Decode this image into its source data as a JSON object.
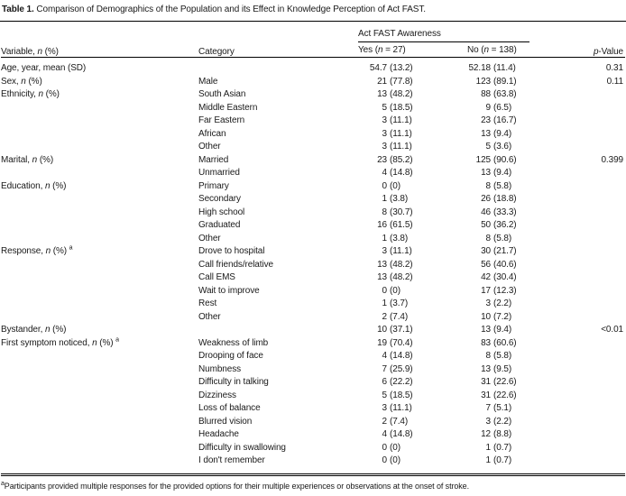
{
  "colors": {
    "text": "#1a1a1a",
    "background": "#ffffff",
    "rule": "#000000"
  },
  "title_segments": [
    {
      "t": "Table 1.",
      "b": true
    },
    {
      "t": " Comparison of Demographics of the Population and its Effect in Knowledge Perception of Act FAST."
    }
  ],
  "table": {
    "columns": {
      "variable_segments": [
        {
          "t": "Variable, "
        },
        {
          "t": "n",
          "i": true
        },
        {
          "t": " (%)"
        }
      ],
      "category": "Category",
      "spanner": "Act FAST Awareness",
      "yes_segments": [
        {
          "t": "Yes ("
        },
        {
          "t": "n",
          "i": true
        },
        {
          "t": " = 27)"
        }
      ],
      "no_segments": [
        {
          "t": "No ("
        },
        {
          "t": "n",
          "i": true
        },
        {
          "t": " = 138)"
        }
      ],
      "pvalue_segments": [
        {
          "t": "p",
          "i": true
        },
        {
          "t": "-Value"
        }
      ]
    },
    "rows": [
      {
        "variable": [
          {
            "t": "Age, year, mean (SD)"
          }
        ],
        "category": "",
        "yes": [
          "54.7",
          "(13.2)"
        ],
        "no": [
          "52.18",
          "(11.4)"
        ],
        "p": "0.31"
      },
      {
        "variable": [
          {
            "t": "Sex, "
          },
          {
            "t": "n",
            "i": true
          },
          {
            "t": " (%)"
          }
        ],
        "category": "Male",
        "yes": [
          "21",
          "(77.8)"
        ],
        "no": [
          "123",
          "(89.1)"
        ],
        "p": "0.11"
      },
      {
        "variable": [
          {
            "t": "Ethnicity, "
          },
          {
            "t": "n",
            "i": true
          },
          {
            "t": " (%)"
          }
        ],
        "category": "South Asian",
        "yes": [
          "13",
          "(48.2)"
        ],
        "no": [
          "88",
          "(63.8)"
        ],
        "p": ""
      },
      {
        "variable": [],
        "category": "Middle Eastern",
        "yes": [
          "5",
          "(18.5)"
        ],
        "no": [
          "9",
          "(6.5)"
        ],
        "p": ""
      },
      {
        "variable": [],
        "category": "Far Eastern",
        "yes": [
          "3",
          "(11.1)"
        ],
        "no": [
          "23",
          "(16.7)"
        ],
        "p": ""
      },
      {
        "variable": [],
        "category": "African",
        "yes": [
          "3",
          "(11.1)"
        ],
        "no": [
          "13",
          "(9.4)"
        ],
        "p": ""
      },
      {
        "variable": [],
        "category": "Other",
        "yes": [
          "3",
          "(11.1)"
        ],
        "no": [
          "5",
          "(3.6)"
        ],
        "p": ""
      },
      {
        "variable": [
          {
            "t": "Marital, "
          },
          {
            "t": "n",
            "i": true
          },
          {
            "t": " (%)"
          }
        ],
        "category": "Married",
        "yes": [
          "23",
          "(85.2)"
        ],
        "no": [
          "125",
          "(90.6)"
        ],
        "p": "0.399"
      },
      {
        "variable": [],
        "category": "Unmarried",
        "yes": [
          "4",
          "(14.8)"
        ],
        "no": [
          "13",
          "(9.4)"
        ],
        "p": ""
      },
      {
        "variable": [
          {
            "t": "Education, "
          },
          {
            "t": "n",
            "i": true
          },
          {
            "t": " (%)"
          }
        ],
        "category": "Primary",
        "yes": [
          "0",
          "(0)"
        ],
        "no": [
          "8",
          "(5.8)"
        ],
        "p": ""
      },
      {
        "variable": [],
        "category": "Secondary",
        "yes": [
          "1",
          "(3.8)"
        ],
        "no": [
          "26",
          "(18.8)"
        ],
        "p": ""
      },
      {
        "variable": [],
        "category": "High school",
        "yes": [
          "8",
          "(30.7)"
        ],
        "no": [
          "46",
          "(33.3)"
        ],
        "p": ""
      },
      {
        "variable": [],
        "category": "Graduated",
        "yes": [
          "16",
          "(61.5)"
        ],
        "no": [
          "50",
          "(36.2)"
        ],
        "p": ""
      },
      {
        "variable": [],
        "category": "Other",
        "yes": [
          "1",
          "(3.8)"
        ],
        "no": [
          "8",
          "(5.8)"
        ],
        "p": ""
      },
      {
        "variable": [
          {
            "t": "Response, "
          },
          {
            "t": "n",
            "i": true
          },
          {
            "t": " (%) "
          },
          {
            "t": "a",
            "sup": true
          }
        ],
        "category": "Drove to hospital",
        "yes": [
          "3",
          "(11.1)"
        ],
        "no": [
          "30",
          "(21.7)"
        ],
        "p": ""
      },
      {
        "variable": [],
        "category": "Call friends/relative",
        "yes": [
          "13",
          "(48.2)"
        ],
        "no": [
          "56",
          "(40.6)"
        ],
        "p": ""
      },
      {
        "variable": [],
        "category": "Call EMS",
        "yes": [
          "13",
          "(48.2)"
        ],
        "no": [
          "42",
          "(30.4)"
        ],
        "p": ""
      },
      {
        "variable": [],
        "category": "Wait to improve",
        "yes": [
          "0",
          "(0)"
        ],
        "no": [
          "17",
          "(12.3)"
        ],
        "p": ""
      },
      {
        "variable": [],
        "category": "Rest",
        "yes": [
          "1",
          "(3.7)"
        ],
        "no": [
          "3",
          "(2.2)"
        ],
        "p": ""
      },
      {
        "variable": [],
        "category": "Other",
        "yes": [
          "2",
          "(7.4)"
        ],
        "no": [
          "10",
          "(7.2)"
        ],
        "p": ""
      },
      {
        "variable": [
          {
            "t": "Bystander, "
          },
          {
            "t": "n",
            "i": true
          },
          {
            "t": " (%)"
          }
        ],
        "category": "",
        "yes": [
          "10",
          "(37.1)"
        ],
        "no": [
          "13",
          "(9.4)"
        ],
        "p": "<0.01"
      },
      {
        "variable": [
          {
            "t": "First symptom noticed, "
          },
          {
            "t": "n",
            "i": true
          },
          {
            "t": " (%) "
          },
          {
            "t": "a",
            "sup": true
          }
        ],
        "category": "Weakness of limb",
        "yes": [
          "19",
          "(70.4)"
        ],
        "no": [
          "83",
          "(60.6)"
        ],
        "p": ""
      },
      {
        "variable": [],
        "category": "Drooping of face",
        "yes": [
          "4",
          "(14.8)"
        ],
        "no": [
          "8",
          "(5.8)"
        ],
        "p": ""
      },
      {
        "variable": [],
        "category": "Numbness",
        "yes": [
          "7",
          "(25.9)"
        ],
        "no": [
          "13",
          "(9.5)"
        ],
        "p": ""
      },
      {
        "variable": [],
        "category": "Difficulty in talking",
        "yes": [
          "6",
          "(22.2)"
        ],
        "no": [
          "31",
          "(22.6)"
        ],
        "p": ""
      },
      {
        "variable": [],
        "category": "Dizziness",
        "yes": [
          "5",
          "(18.5)"
        ],
        "no": [
          "31",
          "(22.6)"
        ],
        "p": ""
      },
      {
        "variable": [],
        "category": "Loss of balance",
        "yes": [
          "3",
          "(11.1)"
        ],
        "no": [
          "7",
          "(5.1)"
        ],
        "p": ""
      },
      {
        "variable": [],
        "category": "Blurred vision",
        "yes": [
          "2",
          "(7.4)"
        ],
        "no": [
          "3",
          "(2.2)"
        ],
        "p": ""
      },
      {
        "variable": [],
        "category": "Headache",
        "yes": [
          "4",
          "(14.8)"
        ],
        "no": [
          "12",
          "(8.8)"
        ],
        "p": ""
      },
      {
        "variable": [],
        "category": "Difficulty in swallowing",
        "yes": [
          "0",
          "(0)"
        ],
        "no": [
          "1",
          "(0.7)"
        ],
        "p": ""
      },
      {
        "variable": [],
        "category": "I don't remember",
        "yes": [
          "0",
          "(0)"
        ],
        "no": [
          "1",
          "(0.7)"
        ],
        "p": ""
      }
    ]
  },
  "footnote_segments": [
    {
      "t": "a",
      "sup": true
    },
    {
      "t": "Participants provided multiple responses for the provided options for their multiple experiences or observations at the onset of stroke."
    }
  ]
}
